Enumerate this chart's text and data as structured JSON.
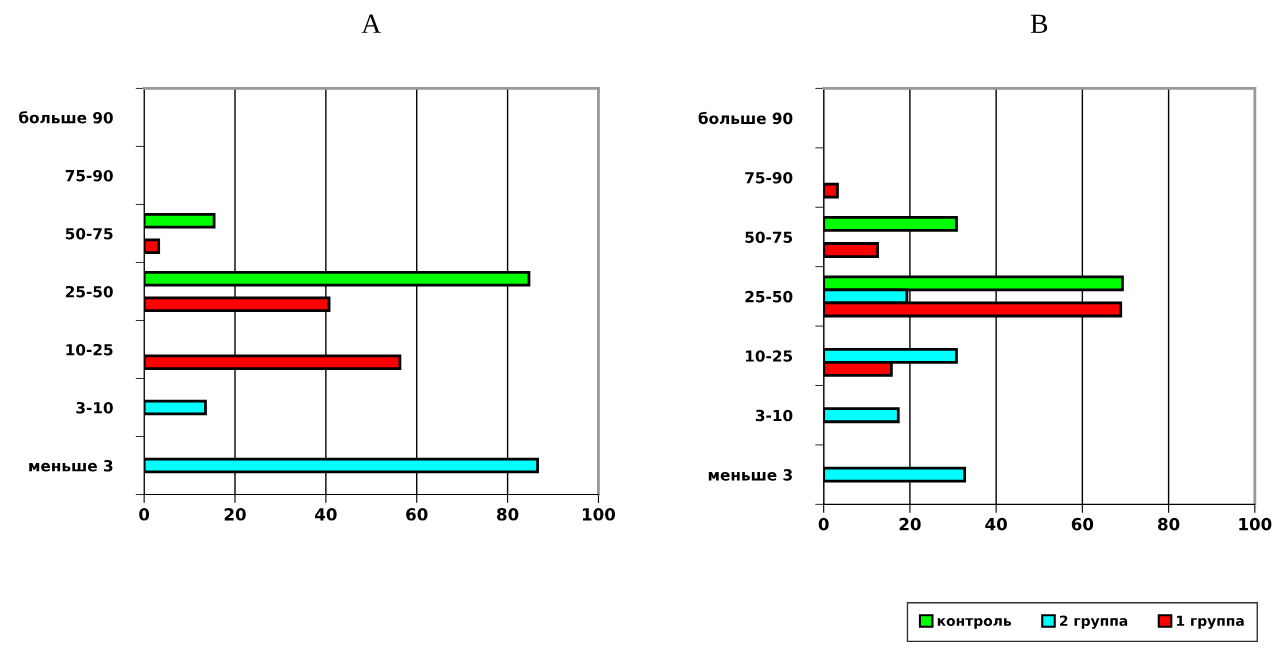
{
  "chart_data": [
    {
      "type": "bar",
      "orientation": "horizontal",
      "title": "A",
      "categories": [
        "больше 90",
        "75-90",
        "50-75",
        "25-50",
        "10-25",
        "3-10",
        "меньше 3"
      ],
      "xlim": [
        0,
        100
      ],
      "xticks": [
        0,
        20,
        40,
        60,
        80,
        100
      ],
      "grid": "x",
      "series": [
        {
          "color": "#00ff00",
          "values": [
            null,
            null,
            15.4,
            84.7,
            null,
            null,
            null
          ]
        },
        {
          "color": "#00ffff",
          "values": [
            null,
            null,
            null,
            null,
            null,
            13.5,
            86.6
          ]
        },
        {
          "color": "#ff0000",
          "values": [
            null,
            null,
            3.2,
            40.7,
            56.3,
            null,
            null
          ]
        }
      ]
    },
    {
      "type": "bar",
      "orientation": "horizontal",
      "title": "B",
      "categories": [
        "больше 90",
        "75-90",
        "50-75",
        "25-50",
        "10-25",
        "3-10",
        "меньше 3"
      ],
      "xlim": [
        0,
        100
      ],
      "xticks": [
        0,
        20,
        40,
        60,
        80,
        100
      ],
      "grid": "x",
      "legend": "bottom",
      "series": [
        {
          "name": "контроль",
          "color": "#00ff00",
          "values": [
            null,
            null,
            30.8,
            69.3,
            null,
            null,
            null
          ]
        },
        {
          "name": "2 группа",
          "color": "#00ffff",
          "values": [
            null,
            null,
            null,
            19.3,
            30.8,
            17.3,
            32.7
          ]
        },
        {
          "name": "1 группа",
          "color": "#ff0000",
          "values": [
            null,
            3.2,
            12.5,
            68.9,
            15.7,
            null,
            null
          ]
        }
      ]
    }
  ]
}
